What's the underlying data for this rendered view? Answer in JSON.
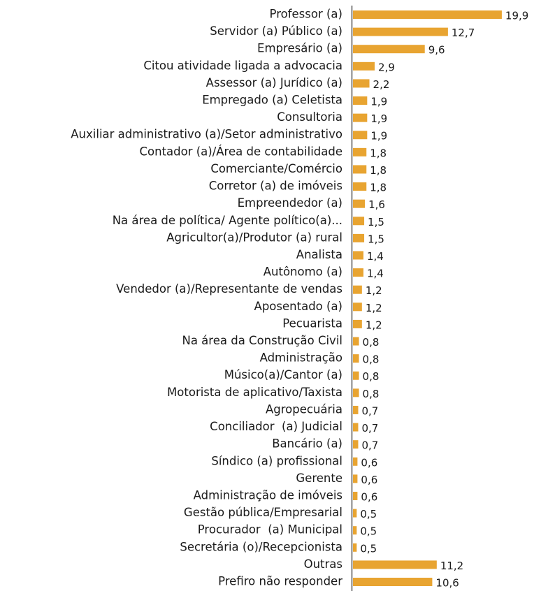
{
  "chart_data": {
    "type": "bar",
    "orientation": "horizontal",
    "categories": [
      "Professor (a)",
      "Servidor (a) Público (a)",
      "Empresário (a)",
      "Citou atividade ligada a advocacia",
      "Assessor (a) Jurídico (a)",
      "Empregado (a) Celetista",
      "Consultoria",
      "Auxiliar administrativo (a)/Setor administrativo",
      "Contador (a)/Área de contabilidade",
      "Comerciante/Comércio",
      "Corretor (a) de imóveis",
      "Empreendedor (a)",
      "Na área de política/ Agente político(a)...",
      "Agricultor(a)/Produtor (a) rural",
      "Analista",
      "Autônomo (a)",
      "Vendedor (a)/Representante de vendas",
      "Aposentado (a)",
      "Pecuarista",
      "Na área da Construção Civil",
      "Administração",
      "Músico(a)/Cantor (a)",
      "Motorista de aplicativo/Taxista",
      "Agropecuária",
      "Conciliador  (a) Judicial",
      "Bancário (a)",
      "Síndico (a) profissional",
      "Gerente",
      "Administração de imóveis",
      "Gestão pública/Empresarial",
      "Procurador  (a) Municipal",
      "Secretária (o)/Recepcionista",
      "Outras",
      "Prefiro não responder"
    ],
    "values": [
      19.9,
      12.7,
      9.6,
      2.9,
      2.2,
      1.9,
      1.9,
      1.9,
      1.8,
      1.8,
      1.8,
      1.6,
      1.5,
      1.5,
      1.4,
      1.4,
      1.2,
      1.2,
      1.2,
      0.8,
      0.8,
      0.8,
      0.8,
      0.7,
      0.7,
      0.7,
      0.6,
      0.6,
      0.6,
      0.5,
      0.5,
      0.5,
      11.2,
      10.6
    ],
    "value_labels": [
      "19,9",
      "12,7",
      "9,6",
      "2,9",
      "2,2",
      "1,9",
      "1,9",
      "1,9",
      "1,8",
      "1,8",
      "1,8",
      "1,6",
      "1,5",
      "1,5",
      "1,4",
      "1,4",
      "1,2",
      "1,2",
      "1,2",
      "0,8",
      "0,8",
      "0,8",
      "0,8",
      "0,7",
      "0,7",
      "0,7",
      "0,6",
      "0,6",
      "0,6",
      "0,5",
      "0,5",
      "0,5",
      "11,2",
      "10,6"
    ],
    "color": "#e8a431",
    "xlim": [
      0,
      20
    ]
  }
}
